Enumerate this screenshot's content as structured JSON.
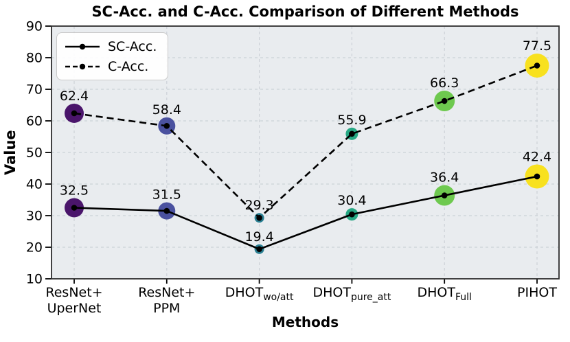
{
  "chart_data": {
    "type": "line",
    "title": "SC-Acc. and C-Acc. Comparison of Different Methods",
    "xlabel": "Methods",
    "ylabel": "Value",
    "ylim": [
      10,
      90
    ],
    "yticks": [
      10,
      20,
      30,
      40,
      50,
      60,
      70,
      80,
      90
    ],
    "grid": "dashed",
    "legend_position": "upper-left",
    "categories": [
      {
        "text": "ResNet+",
        "text2": "UperNet"
      },
      {
        "text": "ResNet+",
        "text2": "PPM"
      },
      {
        "text": "DHOT",
        "sub": "wo/att"
      },
      {
        "text": "DHOT",
        "sub": "pure_att"
      },
      {
        "text": "DHOT",
        "sub": "Full"
      },
      {
        "text": "PIHOT"
      }
    ],
    "series": [
      {
        "name": "SC-Acc.",
        "line_style": "solid",
        "values": [
          32.5,
          31.5,
          19.4,
          30.4,
          36.4,
          42.4
        ]
      },
      {
        "name": "C-Acc.",
        "line_style": "dashed",
        "values": [
          62.4,
          58.4,
          29.3,
          55.9,
          66.3,
          77.5
        ]
      }
    ],
    "marker_colors": [
      "#4a156b",
      "#4a519f",
      "#2a7f92",
      "#27a884",
      "#6ec94f",
      "#f8e11f"
    ],
    "marker_diameters": [
      28,
      25,
      14,
      18,
      30,
      35
    ],
    "line_color": "#000000",
    "point_dot_color": "#000000",
    "plot_bg": "#e9ecef",
    "grid_color": "#ccd1d7",
    "spine_color": "#2e2e2e"
  }
}
